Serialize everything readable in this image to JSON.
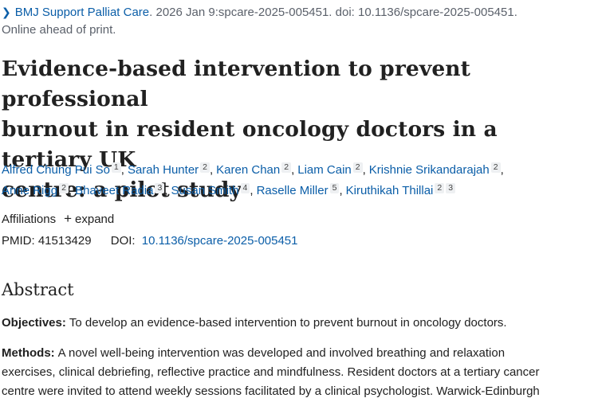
{
  "citation": {
    "journal": "BMJ Support Palliat Care",
    "details": ". 2026 Jan 9:spcare-2025-005451. doi: 10.1136/spcare-2025-005451.",
    "status": "Online ahead of print."
  },
  "title": {
    "line1": "Evidence-based intervention to prevent professional",
    "line2": "burnout in resident oncology doctors in a tertiary UK",
    "line3": "centre: a pilot study"
  },
  "authors": [
    {
      "name": "Alfred Chung Pui So",
      "aff": "1"
    },
    {
      "name": "Sarah Hunter",
      "aff": "2"
    },
    {
      "name": "Karen Chan",
      "aff": "2"
    },
    {
      "name": "Liam Cain",
      "aff": "2"
    },
    {
      "name": "Krishnie Srikandarajah",
      "aff": "2"
    },
    {
      "name": "Anne Rigg",
      "aff": "2"
    },
    {
      "name": "Bhaveet Radia",
      "aff": "3"
    },
    {
      "name": "Susan Smith",
      "aff": "4"
    },
    {
      "name": "Raselle Miller",
      "aff": "5"
    },
    {
      "name": "Kiruthikah Thillai",
      "aff": "2",
      "aff2": "3"
    }
  ],
  "affiliations": {
    "label": "Affiliations",
    "expand_label": "expand"
  },
  "identifiers": {
    "pmid_label": "PMID:",
    "pmid": "41513429",
    "doi_label": "DOI:",
    "doi": "10.1136/spcare-2025-005451"
  },
  "abstract": {
    "heading": "Abstract",
    "objectives_label": "Objectives:",
    "objectives_text": "To develop an evidence-based intervention to prevent burnout in oncology doctors.",
    "methods_label": "Methods:",
    "methods_line1": "A novel well-being intervention was developed and involved breathing and relaxation",
    "methods_line2": "exercises, clinical debriefing, reflective practice and mindfulness. Resident doctors at a tertiary cancer",
    "methods_line3": "centre were invited to attend weekly sessions facilitated by a clinical psychologist. Warwick-Edinburgh"
  },
  "colors": {
    "link": "#0b5ea8",
    "text": "#212121",
    "muted": "#5b616b",
    "badge_bg": "#eef0f2"
  },
  "icons": {
    "journal_chevron": "chevron-right-icon",
    "expand": "plus-icon"
  }
}
